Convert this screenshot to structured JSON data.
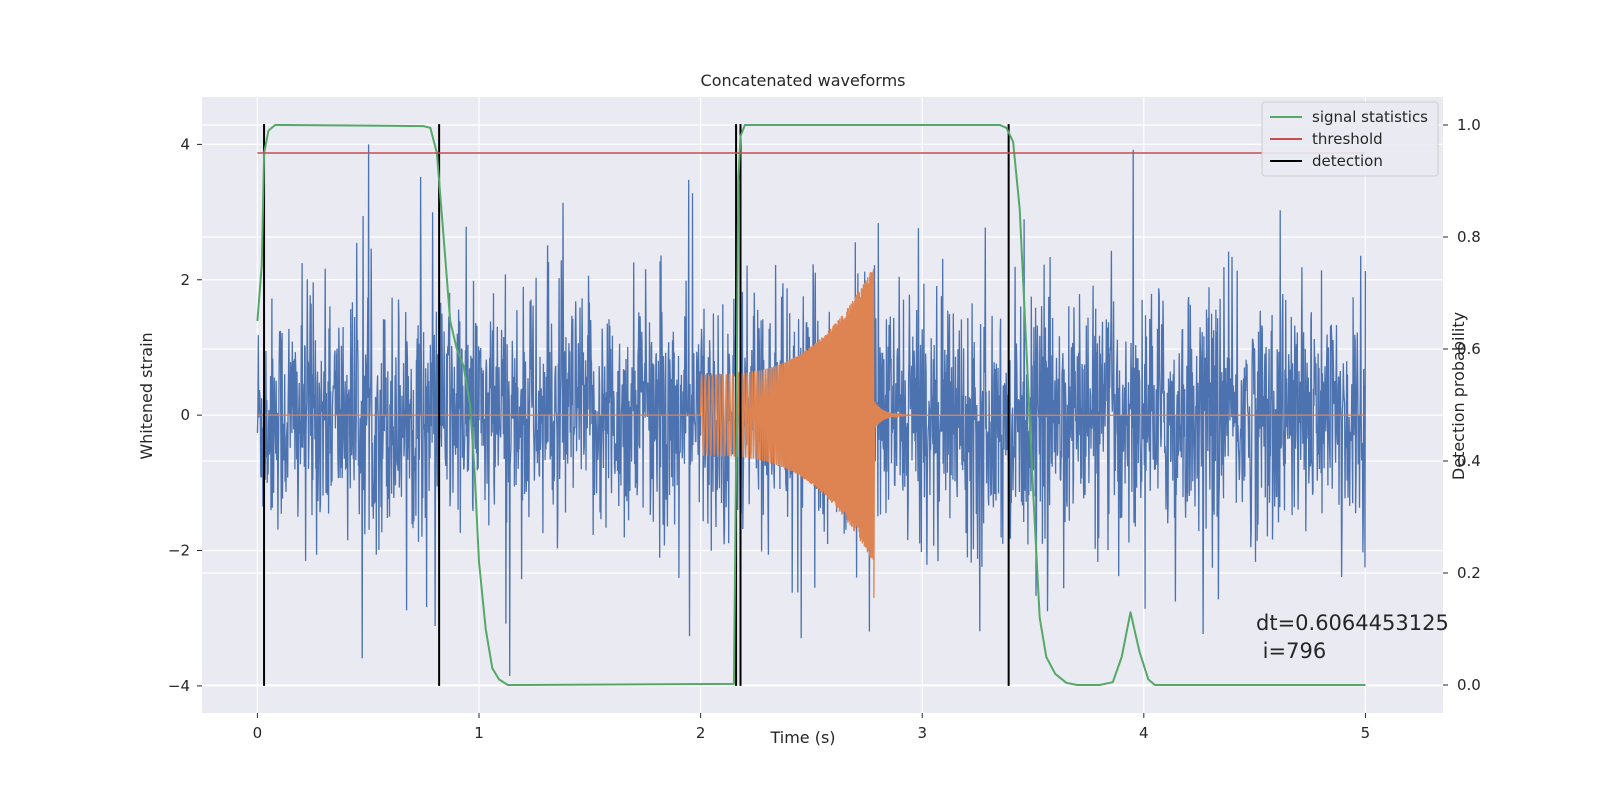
{
  "chart_data": {
    "type": "line",
    "title": "Concatenated waveforms",
    "xlabel": "Time (s)",
    "ylabel_left": "Whitened strain",
    "ylabel_right": "Detection probability",
    "xlim": [
      -0.25,
      5.35
    ],
    "ylim_left": [
      -4.4,
      4.7
    ],
    "ylim_right": [
      -0.05,
      1.05
    ],
    "xticks": [
      0,
      1,
      2,
      3,
      4,
      5
    ],
    "yticks_left": [
      -4,
      -2,
      0,
      2,
      4
    ],
    "yticks_right": [
      0.0,
      0.2,
      0.4,
      0.6,
      0.8,
      1.0
    ],
    "grid": true,
    "legend_position": "top-right",
    "colors": {
      "background": "#eaeaf2",
      "grid": "#ffffff",
      "noise": "#4c72b0",
      "injection": "#dd8452",
      "signal_statistics": "#55a868",
      "threshold": "#c44e52",
      "detection": "#000000"
    },
    "series": [
      {
        "name": "noise",
        "axis": "left",
        "description_values": {
          "x_start": 0,
          "x_end": 5,
          "typical_amplitude": 1.6,
          "max_abs": 4.0
        }
      },
      {
        "name": "injection",
        "axis": "left",
        "x_start": 2.0,
        "x_merger": 2.78,
        "x_end": 5.0,
        "amplitude_at_start": 0.6,
        "amplitude_at_merger": 2.2
      },
      {
        "name": "signal statistics",
        "axis": "right",
        "x": [
          0,
          0.02,
          0.03,
          0.05,
          0.08,
          0.12,
          0.5,
          0.75,
          0.78,
          0.81,
          0.84,
          0.87,
          0.9,
          0.93,
          0.96,
          0.98,
          1.0,
          1.03,
          1.06,
          1.09,
          1.13,
          1.2,
          2.15,
          2.16,
          2.17,
          2.18,
          2.2,
          2.23,
          3.35,
          3.38,
          3.41,
          3.44,
          3.47,
          3.5,
          3.53,
          3.56,
          3.6,
          3.65,
          3.7,
          3.8,
          3.86,
          3.9,
          3.94,
          3.98,
          4.02,
          4.05,
          4.1,
          4.5,
          5.0
        ],
        "y": [
          0.65,
          0.75,
          0.95,
          0.99,
          1.0,
          1.0,
          0.999,
          0.998,
          0.995,
          0.95,
          0.8,
          0.65,
          0.6,
          0.57,
          0.5,
          0.38,
          0.22,
          0.1,
          0.03,
          0.01,
          0.0,
          0.0,
          0.002,
          0.4,
          0.9,
          0.98,
          1.0,
          1.0,
          1.0,
          0.995,
          0.97,
          0.85,
          0.6,
          0.35,
          0.12,
          0.05,
          0.02,
          0.004,
          0.0,
          0.0,
          0.005,
          0.05,
          0.13,
          0.06,
          0.01,
          0.0,
          0.0,
          0.0,
          0.0
        ]
      },
      {
        "name": "threshold",
        "axis": "right",
        "x": [
          0,
          5.0
        ],
        "y": [
          0.95,
          0.95
        ]
      },
      {
        "name": "detection",
        "axis": "left",
        "x": [
          0.03,
          0.82,
          2.16,
          2.18,
          3.39
        ],
        "y_range": [
          -4.0,
          4.3
        ]
      }
    ],
    "legend": [
      "signal statistics",
      "threshold",
      "detection"
    ],
    "annotation": [
      "dt=0.6064453125",
      " i=796"
    ]
  }
}
